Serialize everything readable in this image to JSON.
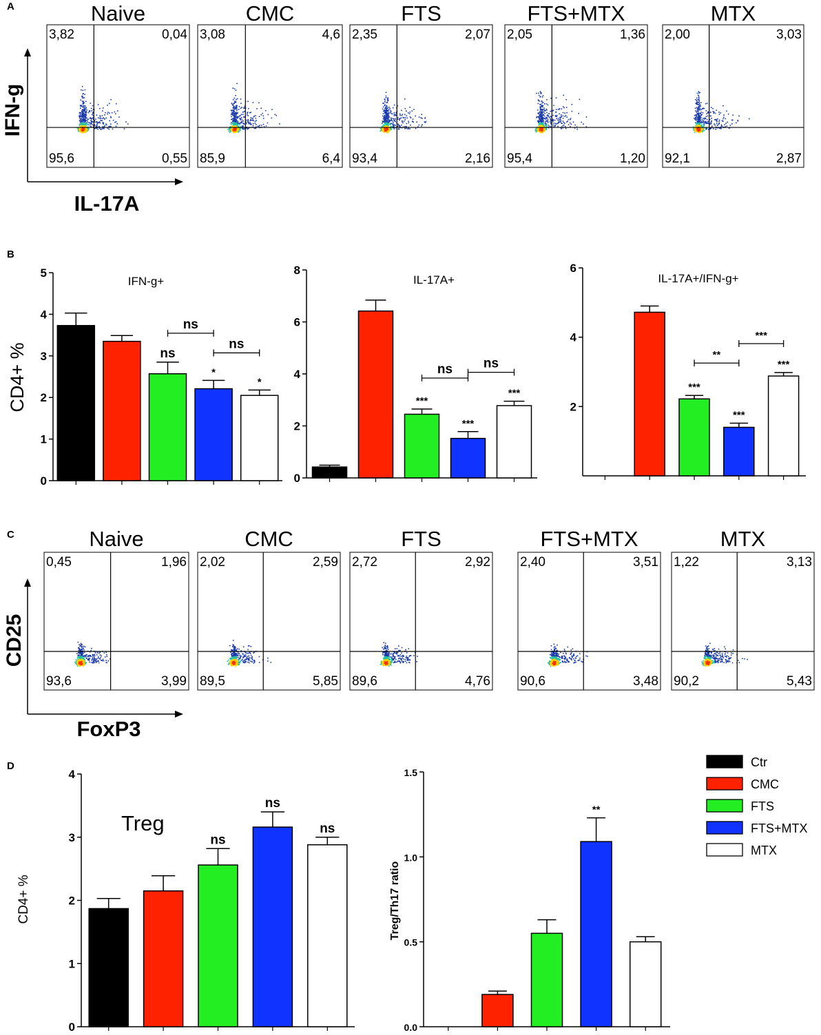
{
  "colors": {
    "Ctr": "#000000",
    "CMC": "#ff2200",
    "FTS": "#22ee22",
    "FTS+MTX": "#1133ff",
    "MTX": "#ffffff"
  },
  "panel_a": {
    "letter": "A",
    "y_axis_label": "IFN-g",
    "x_axis_label": "IL-17A",
    "plots": [
      {
        "title": "Naive",
        "q": [
          "3,82",
          "0,04",
          "95,6",
          "0,55"
        ]
      },
      {
        "title": "CMC",
        "q": [
          "3,08",
          "4,6",
          "85,9",
          "6,4"
        ]
      },
      {
        "title": "FTS",
        "q": [
          "2,35",
          "2,07",
          "93,4",
          "2,16"
        ]
      },
      {
        "title": "FTS+MTX",
        "q": [
          "2,05",
          "1,36",
          "95,4",
          "1,20"
        ]
      },
      {
        "title": "MTX",
        "q": [
          "2,00",
          "3,03",
          "92,1",
          "2,87"
        ]
      }
    ]
  },
  "panel_c": {
    "letter": "C",
    "y_axis_label": "CD25",
    "x_axis_label": "FoxP3",
    "plots": [
      {
        "title": "Naive",
        "q": [
          "0,45",
          "1,96",
          "93,6",
          "3,99"
        ]
      },
      {
        "title": "CMC",
        "q": [
          "2,02",
          "2,59",
          "89,5",
          "5,85"
        ]
      },
      {
        "title": "FTS",
        "q": [
          "2,72",
          "2,92",
          "89,6",
          "4,76"
        ]
      },
      {
        "title": "FTS+MTX",
        "q": [
          "2,40",
          "3,51",
          "90,6",
          "3,48"
        ]
      },
      {
        "title": "MTX",
        "q": [
          "1,22",
          "3,13",
          "90,2",
          "5,43"
        ]
      }
    ]
  },
  "chart_data": [
    {
      "id": "B1",
      "panel_letter": "B",
      "type": "bar",
      "title": "IFN-g+",
      "ylabel": "CD4+ %",
      "ylim": [
        0,
        5
      ],
      "yticks": [
        "0",
        "1",
        "2",
        "3",
        "4",
        "5"
      ],
      "categories": [
        "Ctr",
        "CMC",
        "FTS",
        "FTS+MTX",
        "MTX"
      ],
      "values": [
        3.73,
        3.35,
        2.57,
        2.21,
        2.05
      ],
      "errors": [
        0.3,
        0.14,
        0.28,
        0.2,
        0.13
      ],
      "bar_marks": [
        "",
        "",
        "ns",
        "*",
        "*"
      ],
      "comparisons": [
        {
          "from": 2,
          "to": 3,
          "label": "ns"
        },
        {
          "from": 3,
          "to": 4,
          "label": "ns"
        }
      ]
    },
    {
      "id": "B2",
      "type": "bar",
      "title": "IL-17A+",
      "ylim": [
        0,
        8
      ],
      "yticks": [
        "0",
        "2",
        "4",
        "6",
        "8"
      ],
      "categories": [
        "Ctr",
        "CMC",
        "FTS",
        "FTS+MTX",
        "MTX"
      ],
      "values": [
        0.42,
        6.42,
        2.45,
        1.52,
        2.78
      ],
      "errors": [
        0.07,
        0.42,
        0.2,
        0.26,
        0.17
      ],
      "bar_marks": [
        "",
        "",
        "***",
        "***",
        "***"
      ],
      "comparisons": [
        {
          "from": 2,
          "to": 3,
          "label": "ns"
        },
        {
          "from": 3,
          "to": 4,
          "label": "ns"
        }
      ]
    },
    {
      "id": "B3",
      "type": "bar",
      "title": "IL-17A+/IFN-g+",
      "ylim": [
        0,
        6
      ],
      "yticks": [
        "2",
        "4",
        "6"
      ],
      "categories": [
        "Ctr",
        "CMC",
        "FTS",
        "FTS+MTX",
        "MTX"
      ],
      "values": [
        0,
        4.72,
        2.22,
        1.4,
        2.88
      ],
      "errors": [
        0,
        0.18,
        0.1,
        0.12,
        0.1
      ],
      "bar_marks": [
        "",
        "",
        "***",
        "***",
        "***"
      ],
      "comparisons": [
        {
          "from": 2,
          "to": 3,
          "label": "**"
        },
        {
          "from": 3,
          "to": 4,
          "label": "***"
        }
      ]
    },
    {
      "id": "D1",
      "panel_letter": "D",
      "type": "bar",
      "title": "Treg",
      "ylabel": "CD4+ %",
      "ylim": [
        0,
        4
      ],
      "yticks": [
        "0",
        "1",
        "2",
        "3",
        "4"
      ],
      "categories": [
        "Ctr",
        "CMC",
        "FTS",
        "FTS+MTX",
        "MTX"
      ],
      "values": [
        1.87,
        2.15,
        2.56,
        3.16,
        2.88
      ],
      "errors": [
        0.16,
        0.24,
        0.26,
        0.24,
        0.12
      ],
      "bar_marks": [
        "",
        "",
        "ns",
        "ns",
        "ns"
      ],
      "comparisons": []
    },
    {
      "id": "D2",
      "type": "bar",
      "title": "",
      "ylabel": "Treg/Th17 ratio",
      "ylim": [
        0,
        1.5
      ],
      "yticks": [
        "0.0",
        "0.5",
        "1.0",
        "1.5"
      ],
      "categories": [
        "Ctr",
        "CMC",
        "FTS",
        "FTS+MTX",
        "MTX"
      ],
      "values": [
        0,
        0.19,
        0.55,
        1.09,
        0.5
      ],
      "errors": [
        0,
        0.02,
        0.08,
        0.14,
        0.03
      ],
      "bar_marks": [
        "",
        "",
        "",
        "**",
        ""
      ],
      "comparisons": [],
      "legend": [
        "Ctr",
        "CMC",
        "FTS",
        "FTS+MTX",
        "MTX"
      ]
    }
  ]
}
